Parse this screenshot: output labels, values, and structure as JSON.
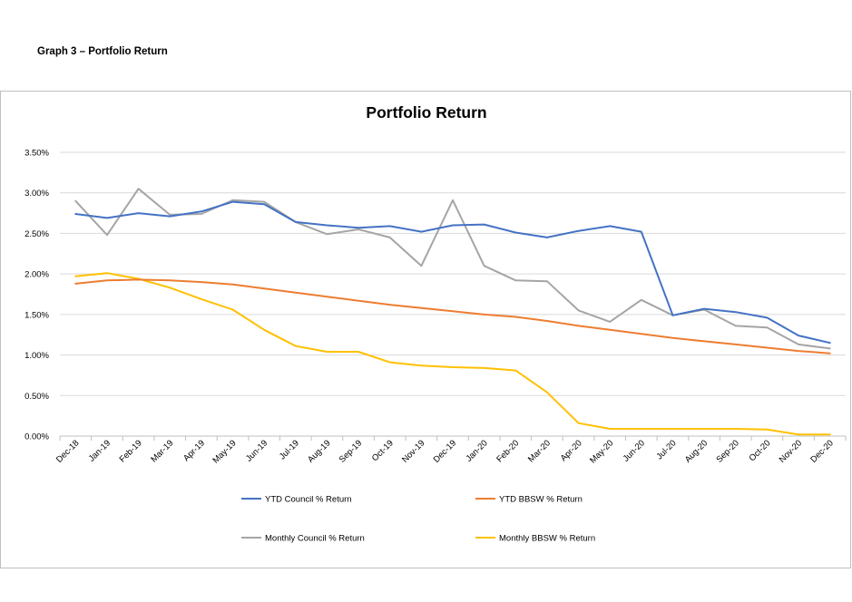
{
  "document": {
    "heading": "Graph 3 – Portfolio Return"
  },
  "chart_data": {
    "type": "line",
    "title": "Portfolio Return",
    "xlabel": "",
    "ylabel": "",
    "categories": [
      "Dec-18",
      "Jan-19",
      "Feb-19",
      "Mar-19",
      "Apr-19",
      "May-19",
      "Jun-19",
      "Jul-19",
      "Aug-19",
      "Sep-19",
      "Oct-19",
      "Nov-19",
      "Dec-19",
      "Jan-20",
      "Feb-20",
      "Mar-20",
      "Apr-20",
      "May-20",
      "Jun-20",
      "Jul-20",
      "Aug-20",
      "Sep-20",
      "Oct-20",
      "Nov-20",
      "Dec-20"
    ],
    "y_ticks": [
      "0.00%",
      "0.50%",
      "1.00%",
      "1.50%",
      "2.00%",
      "2.50%",
      "3.00%",
      "3.50%"
    ],
    "ylim": [
      0,
      3.5
    ],
    "y_unit": "%",
    "grid": true,
    "legend_position": "bottom",
    "series": [
      {
        "name": "YTD Council % Return",
        "color": "#4472C4",
        "values": [
          2.74,
          2.69,
          2.75,
          2.71,
          2.77,
          2.89,
          2.86,
          2.64,
          2.6,
          2.57,
          2.59,
          2.52,
          2.6,
          2.61,
          2.51,
          2.45,
          2.53,
          2.59,
          2.52,
          1.49,
          1.57,
          1.53,
          1.46,
          1.24,
          1.15
        ]
      },
      {
        "name": "YTD BBSW % Return",
        "color": "#ED7D31",
        "values": [
          1.88,
          1.92,
          1.93,
          1.92,
          1.9,
          1.87,
          1.82,
          1.77,
          1.72,
          1.67,
          1.62,
          1.58,
          1.54,
          1.5,
          1.47,
          1.42,
          1.36,
          1.31,
          1.26,
          1.21,
          1.17,
          1.13,
          1.09,
          1.05,
          1.02
        ]
      },
      {
        "name": "Monthly Council % Return",
        "color": "#A5A5A5",
        "values": [
          2.9,
          2.48,
          3.05,
          2.73,
          2.74,
          2.91,
          2.89,
          2.64,
          2.49,
          2.55,
          2.45,
          2.1,
          2.91,
          2.1,
          1.92,
          1.91,
          1.55,
          1.41,
          1.68,
          1.49,
          1.56,
          1.36,
          1.34,
          1.13,
          1.08
        ]
      },
      {
        "name": "Monthly BBSW % Return",
        "color": "#FFC000",
        "values": [
          1.97,
          2.01,
          1.94,
          1.83,
          1.69,
          1.56,
          1.31,
          1.11,
          1.04,
          1.04,
          0.91,
          0.87,
          0.85,
          0.84,
          0.81,
          0.54,
          0.16,
          0.09,
          0.09,
          0.09,
          0.09,
          0.09,
          0.08,
          0.02,
          0.02
        ]
      }
    ]
  }
}
